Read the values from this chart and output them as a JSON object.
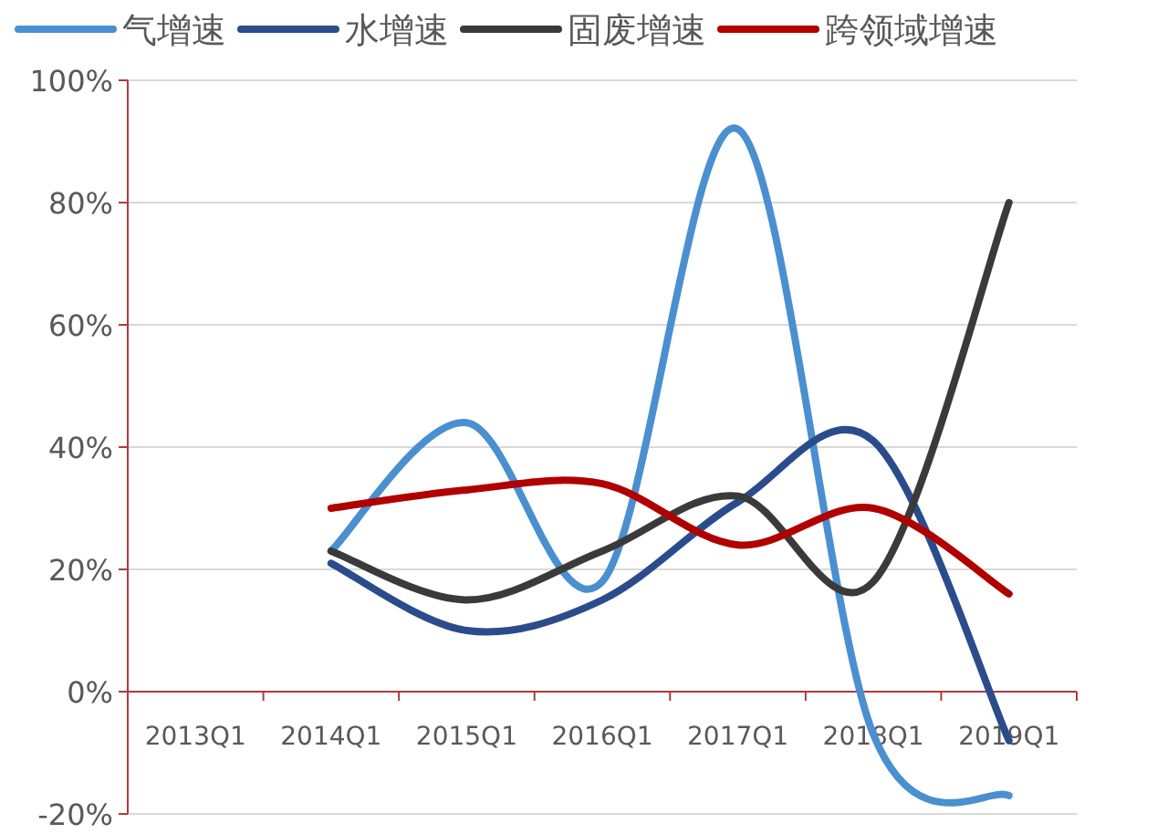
{
  "chart_data": {
    "type": "line",
    "categories": [
      "2013Q1",
      "2014Q1",
      "2015Q1",
      "2016Q1",
      "2017Q1",
      "2018Q1",
      "2019Q1"
    ],
    "series": [
      {
        "name": "气增速",
        "color": "#4a8fd0",
        "values": [
          null,
          23,
          44,
          18,
          92,
          -7,
          -17
        ]
      },
      {
        "name": "水增速",
        "color": "#2b4c8c",
        "values": [
          null,
          21,
          10,
          15,
          31,
          41,
          -8
        ]
      },
      {
        "name": "固废增速",
        "color": "#3a3a3a",
        "values": [
          null,
          23,
          15,
          23,
          32,
          18,
          80
        ]
      },
      {
        "name": "跨领域增速",
        "color": "#b00000",
        "values": [
          null,
          30,
          33,
          34,
          24,
          30,
          16
        ]
      }
    ],
    "ylim": [
      -20,
      100
    ],
    "yticks": [
      {
        "value": -20,
        "label": "-20%"
      },
      {
        "value": 0,
        "label": "0%"
      },
      {
        "value": 20,
        "label": "20%"
      },
      {
        "value": 40,
        "label": "40%"
      },
      {
        "value": 60,
        "label": "60%"
      },
      {
        "value": 80,
        "label": "80%"
      },
      {
        "value": 100,
        "label": "100%"
      }
    ],
    "grid": "y",
    "legend": "top",
    "marker": "none",
    "line_style": "solid"
  }
}
